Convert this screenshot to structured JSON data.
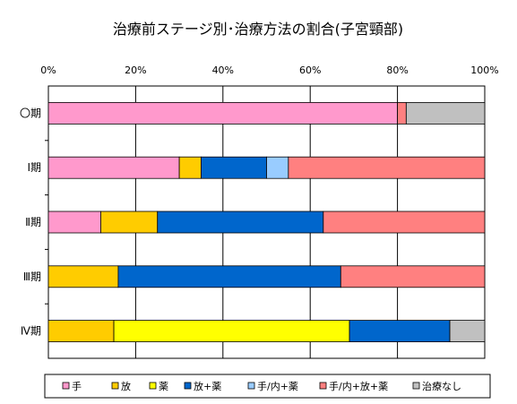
{
  "chart_data": {
    "type": "bar",
    "orientation": "horizontal",
    "stacked": "percent",
    "title": "治療前ステージ別･治療方法の割合(子宮頸部)",
    "x_ticks": [
      "0%",
      "20%",
      "40%",
      "60%",
      "80%",
      "100%"
    ],
    "xlim": [
      0,
      100
    ],
    "x_axis_position": "top",
    "grid": true,
    "legend_position": "bottom",
    "categories": [
      "〇期",
      "Ⅰ期",
      "Ⅱ期",
      "Ⅲ期",
      "Ⅳ期"
    ],
    "series": [
      {
        "name": "手",
        "color": "#ff99cc",
        "values": [
          80,
          30,
          12,
          0,
          0
        ]
      },
      {
        "name": "放",
        "color": "#ffcc00",
        "values": [
          0,
          5,
          13,
          16,
          15
        ]
      },
      {
        "name": "薬",
        "color": "#ffff00",
        "values": [
          0,
          0,
          0,
          0,
          54
        ]
      },
      {
        "name": "放+薬",
        "color": "#0066cc",
        "values": [
          0,
          15,
          38,
          51,
          23
        ]
      },
      {
        "name": "手/内+薬",
        "color": "#99ccff",
        "values": [
          0,
          5,
          0,
          0,
          0
        ]
      },
      {
        "name": "手/内+放+薬",
        "color": "#ff8080",
        "values": [
          2,
          45,
          37,
          33,
          0
        ]
      },
      {
        "name": "治療なし",
        "color": "#c0c0c0",
        "values": [
          18,
          0,
          0,
          0,
          8
        ]
      }
    ]
  }
}
